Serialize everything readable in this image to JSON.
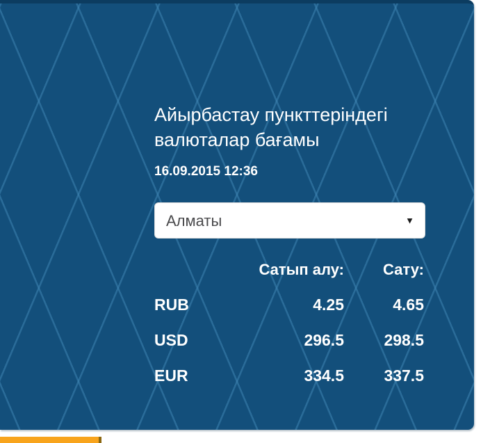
{
  "widget": {
    "title": "Айырбастау пункттеріндегі валюталар бағамы",
    "timestamp": "16.09.2015 12:36",
    "city_select": {
      "selected": "Алматы"
    },
    "rates_table": {
      "buy_header": "Сатып алу:",
      "sell_header": "Сату:",
      "rows": [
        {
          "currency": "RUB",
          "buy": "4.25",
          "sell": "4.65"
        },
        {
          "currency": "USD",
          "buy": "296.5",
          "sell": "298.5"
        },
        {
          "currency": "EUR",
          "buy": "334.5",
          "sell": "337.5"
        }
      ]
    },
    "colors": {
      "panel_bg": "#134f7b",
      "pattern_line": "#3e84b2",
      "panel_top_edge": "#0c3c60",
      "accent_orange": "#f8a41d"
    }
  }
}
